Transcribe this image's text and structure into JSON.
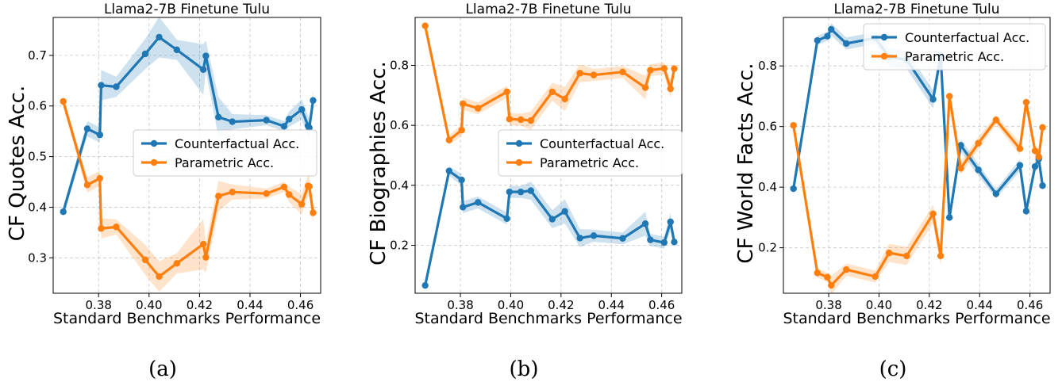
{
  "colors": {
    "counterfactual": "#1f77b4",
    "parametric": "#ff7f0e",
    "grid": "#b0b0b0"
  },
  "chart_data": [
    {
      "type": "line",
      "title": "Llama2-7B Finetune Tulu",
      "xlabel": "Standard Benchmarks Performance",
      "ylabel": "CF Quotes Acc.",
      "caption": "(a)",
      "xlim": [
        0.362,
        0.468
      ],
      "ylim": [
        0.23,
        0.775
      ],
      "xticks": [
        0.38,
        0.4,
        0.42,
        0.44,
        0.46
      ],
      "xtick_labels": [
        "0.38",
        "0.40",
        "0.42",
        "0.44",
        "0.46"
      ],
      "yticks": [
        0.3,
        0.4,
        0.5,
        0.6,
        0.7
      ],
      "ytick_labels": [
        "0.3",
        "0.4",
        "0.5",
        "0.6",
        "0.7"
      ],
      "grid": true,
      "legend_position": "center-right",
      "series": [
        {
          "name": "Counterfactual Acc.",
          "color": "#1f77b4",
          "x": [
            0.366,
            0.3755,
            0.3805,
            0.381,
            0.387,
            0.3985,
            0.404,
            0.411,
            0.4215,
            0.4225,
            0.4275,
            0.433,
            0.4465,
            0.4535,
            0.4555,
            0.4605,
            0.463,
            0.4635,
            0.465
          ],
          "y": [
            0.391,
            0.555,
            0.543,
            0.641,
            0.638,
            0.703,
            0.736,
            0.711,
            0.672,
            0.699,
            0.578,
            0.569,
            0.572,
            0.56,
            0.574,
            0.593,
            0.561,
            0.557,
            0.611
          ],
          "band": [
            0.01,
            0.015,
            0.015,
            0.03,
            0.02,
            0.03,
            0.04,
            0.02,
            0.05,
            0.03,
            0.04,
            0.015,
            0.01,
            0.01,
            0.015,
            0.02,
            0.02,
            0.02,
            0.02
          ]
        },
        {
          "name": "Parametric Acc.",
          "color": "#ff7f0e",
          "x": [
            0.366,
            0.3755,
            0.3805,
            0.381,
            0.387,
            0.3985,
            0.404,
            0.411,
            0.4215,
            0.4225,
            0.4275,
            0.433,
            0.4465,
            0.4535,
            0.4555,
            0.4605,
            0.463,
            0.4635,
            0.465
          ],
          "y": [
            0.609,
            0.444,
            0.457,
            0.358,
            0.361,
            0.296,
            0.263,
            0.289,
            0.327,
            0.301,
            0.422,
            0.43,
            0.427,
            0.44,
            0.425,
            0.406,
            0.442,
            0.441,
            0.389
          ],
          "band": [
            0.01,
            0.015,
            0.015,
            0.02,
            0.015,
            0.03,
            0.03,
            0.02,
            0.05,
            0.03,
            0.03,
            0.015,
            0.01,
            0.01,
            0.015,
            0.02,
            0.02,
            0.02,
            0.02
          ]
        }
      ]
    },
    {
      "type": "line",
      "title": "Llama2-7B Finetune Tulu",
      "xlabel": "Standard Benchmarks Performance",
      "ylabel": "CF Biographies Acc.",
      "caption": "(b)",
      "xlim": [
        0.362,
        0.468
      ],
      "ylim": [
        0.04,
        0.96
      ],
      "xticks": [
        0.38,
        0.4,
        0.42,
        0.44,
        0.46
      ],
      "xtick_labels": [
        "0.38",
        "0.40",
        "0.42",
        "0.44",
        "0.46"
      ],
      "yticks": [
        0.2,
        0.4,
        0.6,
        0.8
      ],
      "ytick_labels": [
        "0.2",
        "0.4",
        "0.6",
        "0.8"
      ],
      "grid": true,
      "legend_position": "center-right",
      "series": [
        {
          "name": "Counterfactual Acc.",
          "color": "#1f77b4",
          "x": [
            0.366,
            0.3755,
            0.3805,
            0.381,
            0.387,
            0.3985,
            0.3995,
            0.404,
            0.408,
            0.4165,
            0.4215,
            0.4275,
            0.433,
            0.4445,
            0.4535,
            0.4555,
            0.461,
            0.4635,
            0.465
          ],
          "y": [
            0.066,
            0.448,
            0.418,
            0.327,
            0.343,
            0.289,
            0.378,
            0.378,
            0.382,
            0.287,
            0.313,
            0.224,
            0.232,
            0.223,
            0.272,
            0.218,
            0.209,
            0.278,
            0.211
          ],
          "band": [
            0.01,
            0.015,
            0.02,
            0.02,
            0.02,
            0.02,
            0.02,
            0.02,
            0.03,
            0.03,
            0.04,
            0.03,
            0.02,
            0.02,
            0.04,
            0.02,
            0.02,
            0.03,
            0.02
          ]
        },
        {
          "name": "Parametric Acc.",
          "color": "#ff7f0e",
          "x": [
            0.366,
            0.3755,
            0.3805,
            0.381,
            0.387,
            0.3985,
            0.3995,
            0.404,
            0.408,
            0.4165,
            0.4215,
            0.4275,
            0.433,
            0.4445,
            0.4535,
            0.4555,
            0.461,
            0.4635,
            0.465
          ],
          "y": [
            0.932,
            0.551,
            0.584,
            0.672,
            0.657,
            0.712,
            0.621,
            0.619,
            0.616,
            0.712,
            0.688,
            0.774,
            0.768,
            0.778,
            0.726,
            0.784,
            0.79,
            0.722,
            0.789
          ],
          "band": [
            0.01,
            0.015,
            0.02,
            0.02,
            0.02,
            0.02,
            0.02,
            0.02,
            0.03,
            0.03,
            0.04,
            0.03,
            0.02,
            0.02,
            0.04,
            0.02,
            0.02,
            0.03,
            0.02
          ]
        }
      ]
    },
    {
      "type": "line",
      "title": "Llama2-7B Finetune Tulu",
      "xlabel": "Standard Benchmarks Performance",
      "ylabel": "CF World Facts Acc.",
      "caption": "(c)",
      "xlim": [
        0.362,
        0.468
      ],
      "ylim": [
        0.05,
        0.96
      ],
      "xticks": [
        0.38,
        0.4,
        0.42,
        0.44,
        0.46
      ],
      "xtick_labels": [
        "0.38",
        "0.40",
        "0.42",
        "0.44",
        "0.46"
      ],
      "yticks": [
        0.2,
        0.4,
        0.6,
        0.8
      ],
      "ytick_labels": [
        "0.2",
        "0.4",
        "0.6",
        "0.8"
      ],
      "grid": true,
      "legend_position": "top-right",
      "series": [
        {
          "name": "Counterfactual Acc.",
          "color": "#1f77b4",
          "x": [
            0.366,
            0.3755,
            0.3795,
            0.381,
            0.387,
            0.3985,
            0.404,
            0.411,
            0.4215,
            0.4245,
            0.428,
            0.4325,
            0.4395,
            0.4465,
            0.456,
            0.4585,
            0.462,
            0.4635,
            0.465
          ],
          "y": [
            0.395,
            0.884,
            0.898,
            0.921,
            0.874,
            0.892,
            0.83,
            0.82,
            0.69,
            0.834,
            0.3,
            0.538,
            0.457,
            0.378,
            0.472,
            0.321,
            0.468,
            0.493,
            0.405
          ],
          "band": [
            0.01,
            0.015,
            0.015,
            0.02,
            0.02,
            0.02,
            0.03,
            0.03,
            0.03,
            0.03,
            0.02,
            0.02,
            0.02,
            0.015,
            0.02,
            0.02,
            0.02,
            0.02,
            0.02
          ]
        },
        {
          "name": "Parametric Acc.",
          "color": "#ff7f0e",
          "x": [
            0.366,
            0.3755,
            0.3795,
            0.381,
            0.387,
            0.3985,
            0.404,
            0.411,
            0.4215,
            0.4245,
            0.428,
            0.4325,
            0.4395,
            0.4465,
            0.456,
            0.4585,
            0.462,
            0.4635,
            0.465
          ],
          "y": [
            0.604,
            0.117,
            0.103,
            0.076,
            0.128,
            0.105,
            0.183,
            0.173,
            0.312,
            0.173,
            0.7,
            0.462,
            0.545,
            0.622,
            0.527,
            0.68,
            0.52,
            0.5,
            0.597
          ],
          "band": [
            0.01,
            0.015,
            0.015,
            0.03,
            0.02,
            0.02,
            0.03,
            0.03,
            0.03,
            0.03,
            0.02,
            0.02,
            0.02,
            0.015,
            0.02,
            0.02,
            0.02,
            0.02,
            0.02
          ]
        }
      ]
    }
  ]
}
